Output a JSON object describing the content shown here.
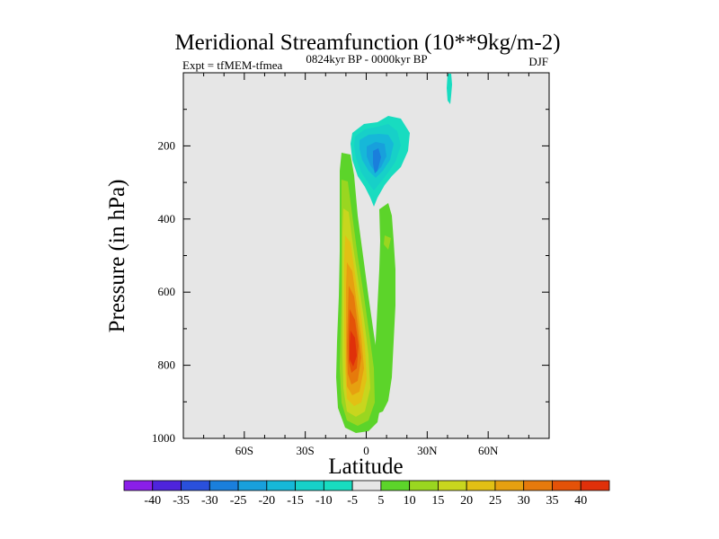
{
  "chart_data": {
    "type": "contour",
    "title": "Meridional Streamfunction (10**9kg/m-2)",
    "experiment_label": "Expt = tfMEM-tfmea",
    "period_label": "0824kyr BP - 0000kyr BP",
    "season_label": "DJF",
    "xlabel": "Latitude",
    "ylabel": "Pressure (in hPa)",
    "xlim": [
      -90,
      90
    ],
    "ylim": [
      1000,
      0
    ],
    "xticks": [
      {
        "value": -60,
        "label": "60S"
      },
      {
        "value": -30,
        "label": "30S"
      },
      {
        "value": 0,
        "label": "0"
      },
      {
        "value": 30,
        "label": "30N"
      },
      {
        "value": 60,
        "label": "60N"
      }
    ],
    "yticks": [
      {
        "value": 200,
        "label": "200"
      },
      {
        "value": 400,
        "label": "400"
      },
      {
        "value": 600,
        "label": "600"
      },
      {
        "value": 800,
        "label": "800"
      },
      {
        "value": 1000,
        "label": "1000"
      }
    ],
    "plot_background": "#e6e6e6",
    "colorbar": {
      "levels": [
        "-40",
        "-35",
        "-30",
        "-25",
        "-20",
        "-15",
        "-10",
        "-5",
        "5",
        "10",
        "15",
        "20",
        "25",
        "30",
        "35",
        "40"
      ],
      "colors": [
        "#8a1fe8",
        "#4e24dc",
        "#2a50dc",
        "#1a7fdc",
        "#18a0dc",
        "#16b8d8",
        "#17d0c8",
        "#18dcc0",
        "#e6e6e6",
        "#5cd42a",
        "#9ad620",
        "#c8d61e",
        "#e2c014",
        "#e6a010",
        "#e67a0c",
        "#e45208",
        "#e0300a"
      ]
    },
    "features": [
      {
        "name": "positive-cell",
        "sign": "positive",
        "max_value": 40,
        "lat_center": -5,
        "pressure_center": 780
      },
      {
        "name": "upper-negative-cell",
        "sign": "negative",
        "min_value": -25,
        "lat_center": 8,
        "pressure_center": 240
      },
      {
        "name": "northern-positive-band",
        "sign": "positive",
        "max_value": 15,
        "lat_center": 15,
        "pressure_center": 600
      },
      {
        "name": "small-negative-patch",
        "sign": "negative",
        "min_value": -5,
        "lat_center": 42,
        "pressure_center": 40
      }
    ]
  }
}
